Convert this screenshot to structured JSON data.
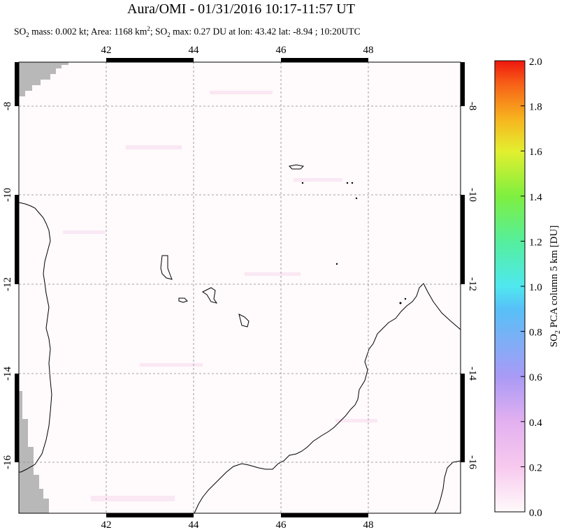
{
  "title": "Aura/OMI - 01/31/2016 10:17-11:57 UT",
  "subtitle": {
    "p1": "SO",
    "p1_sub": "2",
    "p2": " mass: 0.002 kt; Area: 1168 km",
    "p2_sup": "2",
    "p3": "; SO",
    "p3_sub": "2",
    "p4": " max: 0.27 DU at lon: 43.42 lat: -8.94 ; 10:20UTC"
  },
  "map": {
    "lon_ticks": [
      "42",
      "44",
      "46",
      "48"
    ],
    "lat_ticks": [
      "-8",
      "-10",
      "-12",
      "-14",
      "-16"
    ]
  },
  "colorbar": {
    "label": "SO2 PCA column 5 km [DU]",
    "label_parts": {
      "a": "SO",
      "sub": "2",
      "b": " PCA column 5 km [DU]"
    },
    "ticks": [
      "2.0",
      "1.8",
      "1.6",
      "1.4",
      "1.2",
      "1.0",
      "0.8",
      "0.6",
      "0.4",
      "0.2",
      "0.0"
    ],
    "colors": [
      "#fffafa",
      "#f7c9ee",
      "#d6a3f0",
      "#8f8ff7",
      "#4fc8f7",
      "#4fefe0",
      "#5fef7f",
      "#a8ef2f",
      "#efef2f",
      "#f7a81f",
      "#f74f17",
      "#ef170f"
    ]
  }
}
